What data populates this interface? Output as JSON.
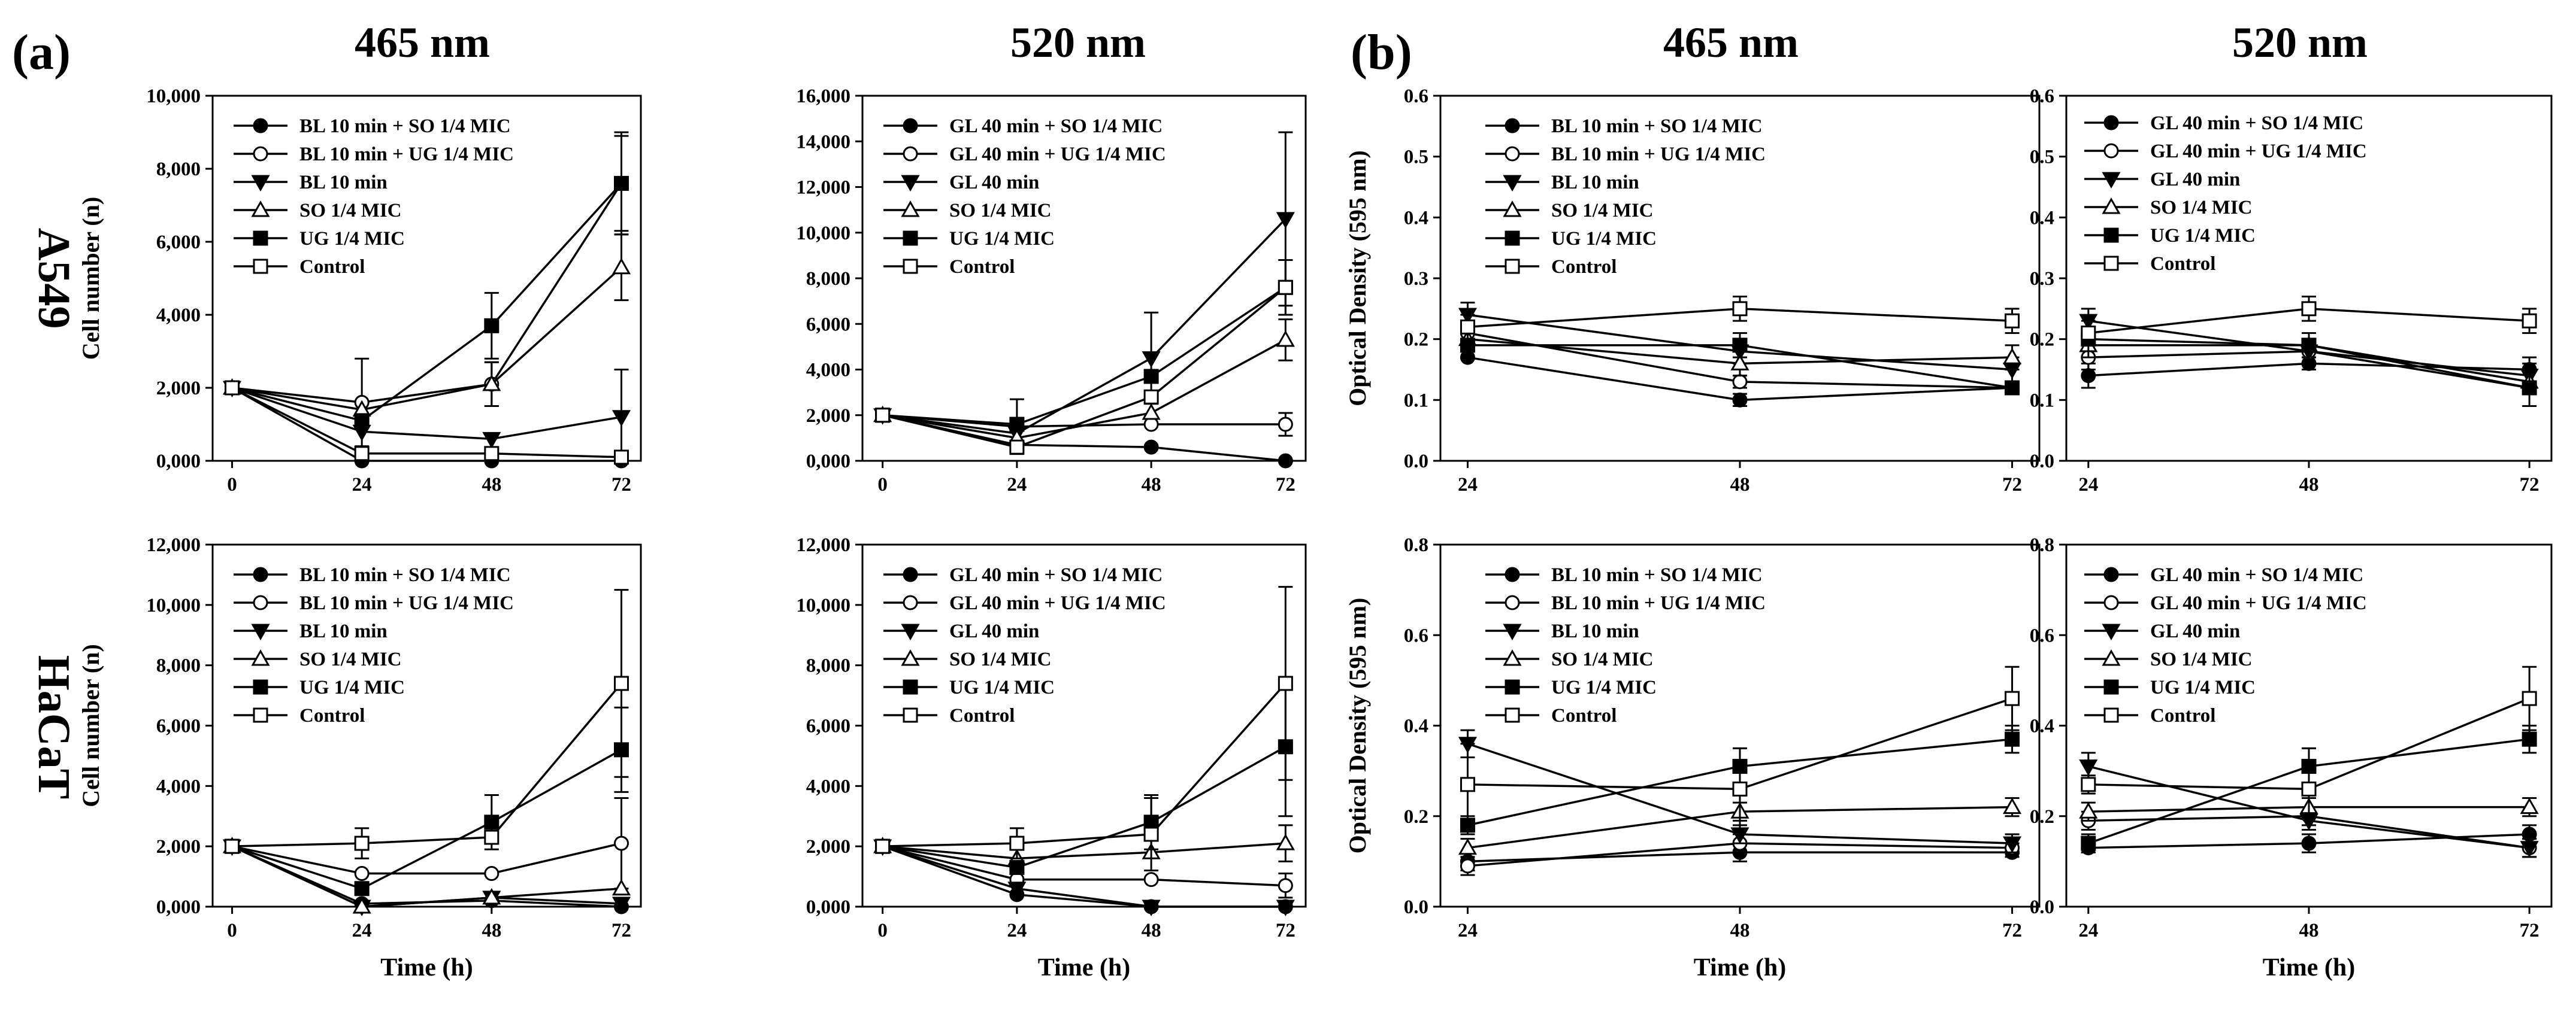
{
  "figure": {
    "panel_a": "(a)",
    "panel_b": "(b)",
    "col_titles": [
      "465 nm",
      "520 nm",
      "465 nm",
      "520 nm"
    ],
    "row_labels": [
      "A549",
      "HaCaT"
    ]
  },
  "chart_data": [
    {
      "id": "a-a549-465",
      "type": "line",
      "xlabel": "",
      "ylabel": "Cell number (n)",
      "x": [
        0,
        24,
        48,
        72
      ],
      "xlim": [
        0,
        72
      ],
      "ylim": [
        0,
        10000
      ],
      "yticks": [
        0,
        2000,
        4000,
        6000,
        8000,
        10000
      ],
      "ytick_labels": [
        "0,000",
        "2,000",
        "4,000",
        "6,000",
        "8,000",
        "10,000"
      ],
      "series": [
        {
          "name": "BL 10 min + SO 1/4 MIC",
          "marker": "circle-filled",
          "values": [
            2000,
            0,
            0,
            0
          ],
          "err": [
            0,
            0,
            0,
            0
          ]
        },
        {
          "name": "BL 10 min + UG 1/4 MIC",
          "marker": "circle-open",
          "values": [
            2000,
            1600,
            2100,
            7600
          ],
          "err": [
            0,
            1200,
            600,
            1400
          ]
        },
        {
          "name": "BL 10 min",
          "marker": "triangle-down-filled",
          "values": [
            2000,
            800,
            600,
            1200
          ],
          "err": [
            0,
            0,
            0,
            1300
          ]
        },
        {
          "name": "SO 1/4 MIC",
          "marker": "triangle-up-open",
          "values": [
            2000,
            1400,
            2100,
            5300
          ],
          "err": [
            0,
            0,
            600,
            900
          ]
        },
        {
          "name": "UG 1/4 MIC",
          "marker": "square-filled",
          "values": [
            2000,
            1100,
            3700,
            7600
          ],
          "err": [
            0,
            0,
            900,
            1300
          ]
        },
        {
          "name": "Control",
          "marker": "square-open",
          "values": [
            2000,
            200,
            200,
            100
          ],
          "err": [
            0,
            0,
            0,
            0
          ]
        }
      ]
    },
    {
      "id": "a-a549-520",
      "type": "line",
      "xlabel": "",
      "ylabel": "",
      "x": [
        0,
        24,
        48,
        72
      ],
      "xlim": [
        0,
        72
      ],
      "ylim": [
        0,
        16000
      ],
      "yticks": [
        0,
        2000,
        4000,
        6000,
        8000,
        10000,
        12000,
        14000,
        16000
      ],
      "ytick_labels": [
        "0,000",
        "2,000",
        "4,000",
        "6,000",
        "8,000",
        "10,000",
        "12,000",
        "14,000",
        "16,000"
      ],
      "series": [
        {
          "name": "GL 40 min + SO 1/4 MIC",
          "marker": "circle-filled",
          "values": [
            2000,
            700,
            600,
            0
          ],
          "err": [
            0,
            0,
            0,
            0
          ]
        },
        {
          "name": "GL 40 min + UG 1/4 MIC",
          "marker": "circle-open",
          "values": [
            2000,
            1500,
            1600,
            1600
          ],
          "err": [
            0,
            1200,
            0,
            500
          ]
        },
        {
          "name": "GL 40 min",
          "marker": "triangle-down-filled",
          "values": [
            2000,
            1200,
            4500,
            10600
          ],
          "err": [
            0,
            0,
            2000,
            3800
          ]
        },
        {
          "name": "SO 1/4 MIC",
          "marker": "triangle-up-open",
          "values": [
            2000,
            1000,
            2100,
            5300
          ],
          "err": [
            0,
            0,
            0,
            900
          ]
        },
        {
          "name": "UG 1/4 MIC",
          "marker": "square-filled",
          "values": [
            2000,
            1600,
            3700,
            7600
          ],
          "err": [
            0,
            0,
            0,
            1200
          ]
        },
        {
          "name": "Control",
          "marker": "square-open",
          "values": [
            2000,
            600,
            2800,
            7600
          ],
          "err": [
            0,
            0,
            0,
            1200
          ]
        }
      ]
    },
    {
      "id": "a-hacat-465",
      "type": "line",
      "xlabel": "Time (h)",
      "ylabel": "Cell number (n)",
      "x": [
        0,
        24,
        48,
        72
      ],
      "xlim": [
        0,
        72
      ],
      "ylim": [
        0,
        12000
      ],
      "yticks": [
        0,
        2000,
        4000,
        6000,
        8000,
        10000,
        12000
      ],
      "ytick_labels": [
        "0,000",
        "2,000",
        "4,000",
        "6,000",
        "8,000",
        "10,000",
        "12,000"
      ],
      "series": [
        {
          "name": "BL 10 min + SO 1/4 MIC",
          "marker": "circle-filled",
          "values": [
            2000,
            100,
            200,
            0
          ],
          "err": [
            0,
            0,
            0,
            0
          ]
        },
        {
          "name": "BL 10 min + UG 1/4 MIC",
          "marker": "circle-open",
          "values": [
            2000,
            1100,
            1100,
            2100
          ],
          "err": [
            0,
            0,
            0,
            1500
          ]
        },
        {
          "name": "BL 10 min",
          "marker": "triangle-down-filled",
          "values": [
            2000,
            0,
            300,
            100
          ],
          "err": [
            0,
            0,
            0,
            0
          ]
        },
        {
          "name": "SO 1/4 MIC",
          "marker": "triangle-up-open",
          "values": [
            2000,
            0,
            300,
            600
          ],
          "err": [
            0,
            0,
            0,
            0
          ]
        },
        {
          "name": "UG 1/4 MIC",
          "marker": "square-filled",
          "values": [
            2000,
            600,
            2800,
            5200
          ],
          "err": [
            0,
            0,
            900,
            1400
          ]
        },
        {
          "name": "Control",
          "marker": "square-open",
          "values": [
            2000,
            2100,
            2300,
            7400
          ],
          "err": [
            0,
            500,
            0,
            3100
          ]
        }
      ]
    },
    {
      "id": "a-hacat-520",
      "type": "line",
      "xlabel": "Time (h)",
      "ylabel": "",
      "x": [
        0,
        24,
        48,
        72
      ],
      "xlim": [
        0,
        72
      ],
      "ylim": [
        0,
        12000
      ],
      "yticks": [
        0,
        2000,
        4000,
        6000,
        8000,
        10000,
        12000
      ],
      "ytick_labels": [
        "0,000",
        "2,000",
        "4,000",
        "6,000",
        "8,000",
        "10,000",
        "12,000"
      ],
      "series": [
        {
          "name": "GL 40 min + SO 1/4 MIC",
          "marker": "circle-filled",
          "values": [
            2000,
            400,
            0,
            0
          ],
          "err": [
            0,
            0,
            0,
            0
          ]
        },
        {
          "name": "GL 40 min + UG 1/4 MIC",
          "marker": "circle-open",
          "values": [
            2000,
            900,
            900,
            700
          ],
          "err": [
            0,
            0,
            0,
            400
          ]
        },
        {
          "name": "GL 40 min",
          "marker": "triangle-down-filled",
          "values": [
            2000,
            600,
            0,
            0
          ],
          "err": [
            0,
            0,
            0,
            0
          ]
        },
        {
          "name": "SO 1/4 MIC",
          "marker": "triangle-up-open",
          "values": [
            2000,
            1600,
            1800,
            2100
          ],
          "err": [
            0,
            0,
            0,
            600
          ]
        },
        {
          "name": "UG 1/4 MIC",
          "marker": "square-filled",
          "values": [
            2000,
            1300,
            2800,
            5300
          ],
          "err": [
            0,
            0,
            900,
            2300
          ]
        },
        {
          "name": "Control",
          "marker": "square-open",
          "values": [
            2000,
            2100,
            2400,
            7400
          ],
          "err": [
            0,
            500,
            1200,
            3200
          ]
        }
      ]
    },
    {
      "id": "b-a549-465",
      "type": "line",
      "xlabel": "",
      "ylabel": "Optical Density (595 nm)",
      "x": [
        24,
        48,
        72
      ],
      "xlim": [
        24,
        72
      ],
      "ylim": [
        0,
        0.6
      ],
      "yticks": [
        0,
        0.1,
        0.2,
        0.3,
        0.4,
        0.5,
        0.6
      ],
      "ytick_labels": [
        "0.0",
        "0.1",
        "0.2",
        "0.3",
        "0.4",
        "0.5",
        "0.6"
      ],
      "series": [
        {
          "name": "BL 10 min + SO 1/4 MIC",
          "marker": "circle-filled",
          "values": [
            0.17,
            0.1,
            0.12
          ],
          "err": [
            0,
            0.01,
            0.01
          ]
        },
        {
          "name": "BL 10 min + UG 1/4 MIC",
          "marker": "circle-open",
          "values": [
            0.21,
            0.13,
            0.12
          ],
          "err": [
            0.02,
            0.01,
            0.01
          ]
        },
        {
          "name": "BL 10 min",
          "marker": "triangle-down-filled",
          "values": [
            0.24,
            0.18,
            0.15
          ],
          "err": [
            0.02,
            0.02,
            0.02
          ]
        },
        {
          "name": "SO 1/4 MIC",
          "marker": "triangle-up-open",
          "values": [
            0.2,
            0.16,
            0.17
          ],
          "err": [
            0.02,
            0.02,
            0.02
          ]
        },
        {
          "name": "UG 1/4 MIC",
          "marker": "square-filled",
          "values": [
            0.19,
            0.19,
            0.12
          ],
          "err": [
            0.02,
            0.02,
            0.01
          ]
        },
        {
          "name": "Control",
          "marker": "square-open",
          "values": [
            0.22,
            0.25,
            0.23
          ],
          "err": [
            0.02,
            0.02,
            0.02
          ]
        }
      ]
    },
    {
      "id": "b-a549-520",
      "type": "line",
      "xlabel": "",
      "ylabel": "",
      "x": [
        24,
        48,
        72
      ],
      "xlim": [
        24,
        72
      ],
      "ylim": [
        0,
        0.6
      ],
      "yticks": [
        0,
        0.1,
        0.2,
        0.3,
        0.4,
        0.5,
        0.6
      ],
      "ytick_labels": [
        "0.0",
        "0.1",
        "0.2",
        "0.3",
        "0.4",
        "0.5",
        "0.6"
      ],
      "series": [
        {
          "name": "GL 40 min + SO 1/4 MIC",
          "marker": "circle-filled",
          "values": [
            0.14,
            0.16,
            0.15
          ],
          "err": [
            0.02,
            0.01,
            0.02
          ]
        },
        {
          "name": "GL 40 min + UG 1/4 MIC",
          "marker": "circle-open",
          "values": [
            0.17,
            0.18,
            0.12
          ],
          "err": [
            0.02,
            0.02,
            0.01
          ]
        },
        {
          "name": "GL 40 min",
          "marker": "triangle-down-filled",
          "values": [
            0.23,
            0.18,
            0.14
          ],
          "err": [
            0.02,
            0.02,
            0.02
          ]
        },
        {
          "name": "SO 1/4 MIC",
          "marker": "triangle-up-open",
          "values": [
            0.19,
            0.19,
            0.13
          ],
          "err": [
            0.02,
            0.02,
            0.02
          ]
        },
        {
          "name": "UG 1/4 MIC",
          "marker": "square-filled",
          "values": [
            0.2,
            0.19,
            0.12
          ],
          "err": [
            0.02,
            0.02,
            0.03
          ]
        },
        {
          "name": "Control",
          "marker": "square-open",
          "values": [
            0.21,
            0.25,
            0.23
          ],
          "err": [
            0.02,
            0.02,
            0.02
          ]
        }
      ]
    },
    {
      "id": "b-hacat-465",
      "type": "line",
      "xlabel": "Time (h)",
      "ylabel": "Optical Density (595 nm)",
      "x": [
        24,
        48,
        72
      ],
      "xlim": [
        24,
        72
      ],
      "ylim": [
        0,
        0.8
      ],
      "yticks": [
        0,
        0.2,
        0.4,
        0.6,
        0.8
      ],
      "ytick_labels": [
        "0.0",
        "0.2",
        "0.4",
        "0.6",
        "0.8"
      ],
      "series": [
        {
          "name": "BL 10 min + SO 1/4 MIC",
          "marker": "circle-filled",
          "values": [
            0.1,
            0.12,
            0.12
          ],
          "err": [
            0.02,
            0.02,
            0.01
          ]
        },
        {
          "name": "BL 10 min + UG 1/4 MIC",
          "marker": "circle-open",
          "values": [
            0.09,
            0.14,
            0.13
          ],
          "err": [
            0.02,
            0.02,
            0.01
          ]
        },
        {
          "name": "BL 10 min",
          "marker": "triangle-down-filled",
          "values": [
            0.36,
            0.16,
            0.14
          ],
          "err": [
            0.03,
            0.02,
            0.02
          ]
        },
        {
          "name": "SO 1/4 MIC",
          "marker": "triangle-up-open",
          "values": [
            0.13,
            0.21,
            0.22
          ],
          "err": [
            0.02,
            0.02,
            0.02
          ]
        },
        {
          "name": "UG 1/4 MIC",
          "marker": "square-filled",
          "values": [
            0.18,
            0.31,
            0.37
          ],
          "err": [
            0.02,
            0.04,
            0.03
          ]
        },
        {
          "name": "Control",
          "marker": "square-open",
          "values": [
            0.27,
            0.26,
            0.46
          ],
          "err": [
            0.09,
            0.09,
            0.07
          ]
        }
      ]
    },
    {
      "id": "b-hacat-520",
      "type": "line",
      "xlabel": "Time (h)",
      "ylabel": "",
      "x": [
        24,
        48,
        72
      ],
      "xlim": [
        24,
        72
      ],
      "ylim": [
        0,
        0.8
      ],
      "yticks": [
        0,
        0.2,
        0.4,
        0.6,
        0.8
      ],
      "ytick_labels": [
        "0.0",
        "0.2",
        "0.4",
        "0.6",
        "0.8"
      ],
      "series": [
        {
          "name": "GL 40 min + SO 1/4 MIC",
          "marker": "circle-filled",
          "values": [
            0.13,
            0.14,
            0.16
          ],
          "err": [
            0.01,
            0.02,
            0.02
          ]
        },
        {
          "name": "GL 40 min + UG 1/4 MIC",
          "marker": "circle-open",
          "values": [
            0.19,
            0.2,
            0.13
          ],
          "err": [
            0.02,
            0.02,
            0.02
          ]
        },
        {
          "name": "GL 40 min",
          "marker": "triangle-down-filled",
          "values": [
            0.31,
            0.19,
            0.13
          ],
          "err": [
            0.03,
            0.02,
            0.02
          ]
        },
        {
          "name": "SO 1/4 MIC",
          "marker": "triangle-up-open",
          "values": [
            0.21,
            0.22,
            0.22
          ],
          "err": [
            0.02,
            0.02,
            0.02
          ]
        },
        {
          "name": "UG 1/4 MIC",
          "marker": "square-filled",
          "values": [
            0.14,
            0.31,
            0.37
          ],
          "err": [
            0.02,
            0.04,
            0.03
          ]
        },
        {
          "name": "Control",
          "marker": "square-open",
          "values": [
            0.27,
            0.26,
            0.46
          ],
          "err": [
            0.02,
            0.09,
            0.07
          ]
        }
      ]
    }
  ]
}
